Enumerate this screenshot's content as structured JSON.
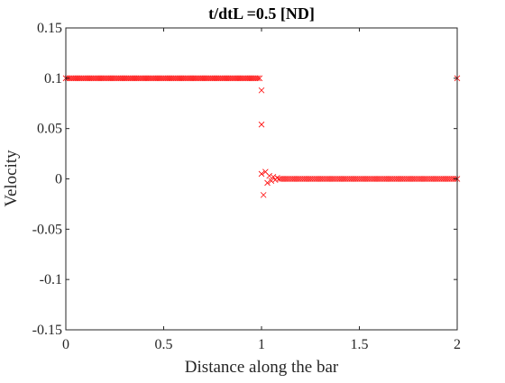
{
  "chart_data": {
    "type": "scatter",
    "title": "t/dtL =0.5 [ND]",
    "xlabel": "Distance along the bar",
    "ylabel": "Velocity",
    "xlim": [
      0,
      2
    ],
    "ylim": [
      -0.15,
      0.15
    ],
    "x_ticks": [
      0,
      0.5,
      1,
      1.5,
      2
    ],
    "y_ticks": [
      -0.15,
      -0.1,
      -0.05,
      0,
      0.05,
      0.1,
      0.15
    ],
    "x_tick_labels": [
      "0",
      "0.5",
      "1",
      "1.5",
      "2"
    ],
    "y_tick_labels": [
      "-0.15",
      "-0.1",
      "-0.05",
      "0",
      "0.05",
      "0.1",
      "0.15"
    ],
    "grid": false,
    "box": true,
    "marker": "x",
    "marker_color": "#ff0000",
    "series": [
      {
        "segments": [
          {
            "x_start": 0,
            "x_end": 0.98,
            "step": 0.01,
            "y": 0.1
          },
          {
            "x_start": 1.1,
            "x_end": 2.0,
            "step": 0.01,
            "y": 0.0
          }
        ],
        "points": [
          {
            "x": 0.99,
            "y": 0.1
          },
          {
            "x": 1.0,
            "y": 0.088
          },
          {
            "x": 1.0,
            "y": 0.054
          },
          {
            "x": 1.0,
            "y": 0.005
          },
          {
            "x": 1.01,
            "y": -0.016
          },
          {
            "x": 1.02,
            "y": 0.007
          },
          {
            "x": 1.03,
            "y": -0.004
          },
          {
            "x": 1.04,
            "y": 0.003
          },
          {
            "x": 1.05,
            "y": -0.002
          },
          {
            "x": 1.06,
            "y": 0.002
          },
          {
            "x": 1.07,
            "y": -0.001
          },
          {
            "x": 1.08,
            "y": 0.001
          },
          {
            "x": 1.09,
            "y": 0.0
          },
          {
            "x": 2.0,
            "y": 0.1
          }
        ]
      }
    ]
  }
}
